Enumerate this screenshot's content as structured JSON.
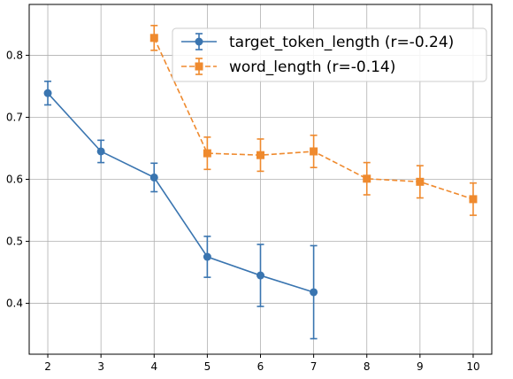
{
  "chart_data": {
    "type": "line",
    "title": "",
    "xlabel": "",
    "ylabel": "",
    "xlim": [
      1.65,
      10.35
    ],
    "ylim": [
      0.318,
      0.882
    ],
    "xticks": [
      2,
      3,
      4,
      5,
      6,
      7,
      8,
      9,
      10
    ],
    "yticks": [
      0.4,
      0.5,
      0.6,
      0.7,
      0.8
    ],
    "ytick_labels": [
      "0.4",
      "0.5",
      "0.6",
      "0.7",
      "0.8"
    ],
    "grid": true,
    "legend_position": "top-right",
    "series": [
      {
        "name": "target_token_length (r=-0.24)",
        "color": "#3a75b0",
        "linestyle": "solid",
        "marker": "circle",
        "x": [
          2,
          3,
          4,
          5,
          6,
          7
        ],
        "y": [
          0.739,
          0.645,
          0.603,
          0.475,
          0.445,
          0.418
        ],
        "err": [
          0.019,
          0.018,
          0.023,
          0.033,
          0.05,
          0.075
        ]
      },
      {
        "name": "word_length (r=-0.14)",
        "color": "#ef8a2e",
        "linestyle": "dashed",
        "marker": "square",
        "x": [
          4,
          5,
          6,
          7,
          8,
          9,
          10
        ],
        "y": [
          0.828,
          0.642,
          0.639,
          0.645,
          0.601,
          0.596,
          0.568
        ],
        "err": [
          0.02,
          0.026,
          0.026,
          0.026,
          0.026,
          0.026,
          0.026
        ]
      }
    ]
  }
}
